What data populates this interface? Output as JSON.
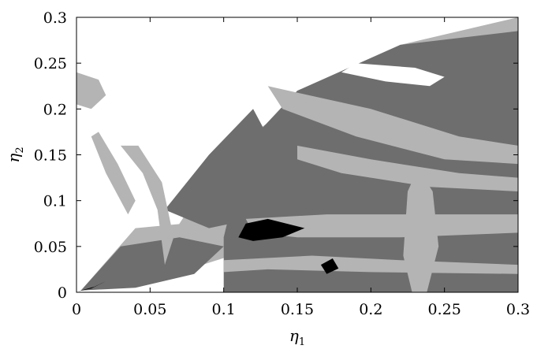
{
  "chart_data": {
    "type": "heatmap",
    "title": "",
    "xlabel_base": "η",
    "xlabel_sub": "1",
    "ylabel_base": "η",
    "ylabel_sub": "2",
    "xlim": [
      0,
      0.3
    ],
    "ylim": [
      0,
      0.3
    ],
    "x_ticks": [
      "0",
      "0.05",
      "0.1",
      "0.15",
      "0.2",
      "0.25",
      "0.3"
    ],
    "y_ticks": [
      "0",
      "0.05",
      "0.1",
      "0.15",
      "0.2",
      "0.25",
      "0.3"
    ],
    "grid": false,
    "legend": "none",
    "levels": [
      "white",
      "light-gray",
      "dark-gray",
      "black"
    ],
    "colors": {
      "white": "#ffffff",
      "light_gray": "#b4b4b4",
      "dark_gray": "#6e6e6e",
      "black": "#000000"
    },
    "regions": [
      {
        "level": "light-gray",
        "points": [
          [
            0.003,
            0.002
          ],
          [
            0.04,
            0.07
          ],
          [
            0.12,
            0.082
          ],
          [
            0.115,
            0.045
          ],
          [
            0.07,
            0.022
          ]
        ]
      },
      {
        "level": "light-gray",
        "points": [
          [
            0.06,
            0.05
          ],
          [
            0.1,
            0.15
          ],
          [
            0.16,
            0.22
          ],
          [
            0.22,
            0.27
          ],
          [
            0.3,
            0.3
          ],
          [
            0.3,
            0.26
          ],
          [
            0.24,
            0.24
          ],
          [
            0.18,
            0.18
          ],
          [
            0.13,
            0.1
          ],
          [
            0.09,
            0.05
          ]
        ]
      },
      {
        "level": "dark-gray",
        "points": [
          [
            0.1,
            0.06
          ],
          [
            0.115,
            0.16
          ],
          [
            0.15,
            0.22
          ],
          [
            0.22,
            0.27
          ],
          [
            0.3,
            0.285
          ],
          [
            0.3,
            0.0
          ],
          [
            0.1,
            0.0
          ]
        ]
      },
      {
        "level": "dark-gray",
        "points": [
          [
            0.06,
            0.09
          ],
          [
            0.09,
            0.15
          ],
          [
            0.12,
            0.2
          ],
          [
            0.14,
            0.14
          ],
          [
            0.12,
            0.08
          ],
          [
            0.09,
            0.07
          ]
        ]
      },
      {
        "level": "dark-gray",
        "points": [
          [
            0.003,
            0.002
          ],
          [
            0.03,
            0.05
          ],
          [
            0.07,
            0.06
          ],
          [
            0.1,
            0.05
          ],
          [
            0.08,
            0.02
          ],
          [
            0.04,
            0.005
          ]
        ]
      },
      {
        "level": "light-gray",
        "points": [
          [
            0.13,
            0.225
          ],
          [
            0.2,
            0.2
          ],
          [
            0.26,
            0.17
          ],
          [
            0.3,
            0.16
          ],
          [
            0.3,
            0.14
          ],
          [
            0.25,
            0.145
          ],
          [
            0.19,
            0.17
          ],
          [
            0.14,
            0.2
          ]
        ]
      },
      {
        "level": "light-gray",
        "points": [
          [
            0.15,
            0.16
          ],
          [
            0.2,
            0.145
          ],
          [
            0.26,
            0.13
          ],
          [
            0.3,
            0.125
          ],
          [
            0.3,
            0.11
          ],
          [
            0.24,
            0.115
          ],
          [
            0.18,
            0.13
          ],
          [
            0.15,
            0.145
          ]
        ]
      },
      {
        "level": "light-gray",
        "points": [
          [
            0.115,
            0.08
          ],
          [
            0.17,
            0.085
          ],
          [
            0.23,
            0.085
          ],
          [
            0.3,
            0.085
          ],
          [
            0.3,
            0.065
          ],
          [
            0.22,
            0.06
          ],
          [
            0.15,
            0.06
          ],
          [
            0.12,
            0.065
          ]
        ]
      },
      {
        "level": "light-gray",
        "points": [
          [
            0.1,
            0.035
          ],
          [
            0.16,
            0.04
          ],
          [
            0.22,
            0.035
          ],
          [
            0.3,
            0.03
          ],
          [
            0.3,
            0.02
          ],
          [
            0.2,
            0.022
          ],
          [
            0.13,
            0.025
          ],
          [
            0.1,
            0.022
          ]
        ]
      },
      {
        "level": "light-gray",
        "points": [
          [
            0.225,
            0.11
          ],
          [
            0.232,
            0.135
          ],
          [
            0.242,
            0.11
          ],
          [
            0.246,
            0.05
          ],
          [
            0.238,
            0.0
          ],
          [
            0.228,
            0.0
          ],
          [
            0.222,
            0.04
          ]
        ]
      },
      {
        "level": "light-gray",
        "points": [
          [
            0.01,
            0.17
          ],
          [
            0.02,
            0.13
          ],
          [
            0.035,
            0.085
          ],
          [
            0.04,
            0.1
          ],
          [
            0.028,
            0.14
          ],
          [
            0.015,
            0.175
          ]
        ]
      },
      {
        "level": "light-gray",
        "points": [
          [
            0.03,
            0.16
          ],
          [
            0.045,
            0.13
          ],
          [
            0.055,
            0.09
          ],
          [
            0.06,
            0.03
          ],
          [
            0.066,
            0.06
          ],
          [
            0.058,
            0.12
          ],
          [
            0.042,
            0.16
          ]
        ]
      },
      {
        "level": "light-gray",
        "points": [
          [
            0.0,
            0.24
          ],
          [
            0.015,
            0.232
          ],
          [
            0.02,
            0.215
          ],
          [
            0.01,
            0.2
          ],
          [
            0.0,
            0.205
          ]
        ]
      },
      {
        "level": "white",
        "points": [
          [
            0.19,
            0.25
          ],
          [
            0.23,
            0.245
          ],
          [
            0.25,
            0.235
          ],
          [
            0.24,
            0.225
          ],
          [
            0.21,
            0.23
          ],
          [
            0.18,
            0.24
          ]
        ]
      },
      {
        "level": "black",
        "points": [
          [
            0.11,
            0.06
          ],
          [
            0.115,
            0.075
          ],
          [
            0.13,
            0.08
          ],
          [
            0.155,
            0.07
          ],
          [
            0.14,
            0.06
          ],
          [
            0.12,
            0.056
          ]
        ]
      },
      {
        "level": "black",
        "points": [
          [
            0.001,
            0.001
          ],
          [
            0.012,
            0.006
          ],
          [
            0.02,
            0.012
          ],
          [
            0.01,
            0.004
          ]
        ]
      },
      {
        "level": "black",
        "points": [
          [
            0.166,
            0.03
          ],
          [
            0.174,
            0.037
          ],
          [
            0.178,
            0.026
          ],
          [
            0.17,
            0.02
          ]
        ]
      }
    ]
  }
}
